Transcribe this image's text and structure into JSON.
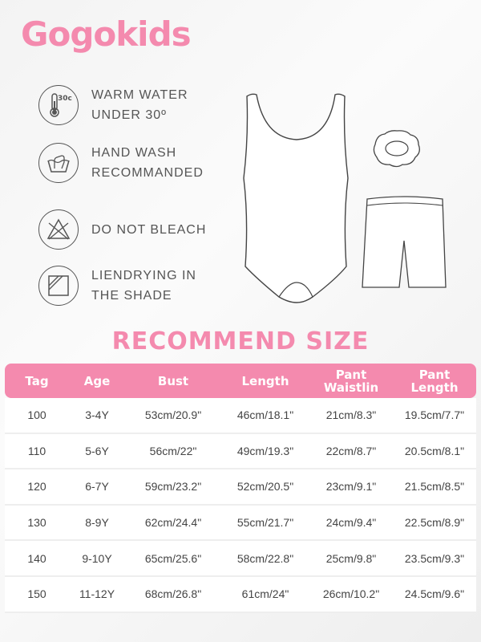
{
  "brand": "Gogokids",
  "care": [
    {
      "icon": "thermometer-30-icon",
      "lines": [
        "WARM WATER",
        "UNDER 30º"
      ]
    },
    {
      "icon": "hand-wash-icon",
      "lines": [
        "HAND WASH",
        "RECOMMANDED"
      ]
    },
    {
      "icon": "no-bleach-icon",
      "lines": [
        "DO NOT BLEACH"
      ]
    },
    {
      "icon": "dry-in-shade-icon",
      "lines": [
        "LIENDRYING IN",
        "THE SHADE"
      ]
    }
  ],
  "thermo_label": "30c",
  "title": "RECOMMEND SIZE",
  "colors": {
    "accent": "#f48aae"
  },
  "table": {
    "headers": [
      [
        "Tag"
      ],
      [
        "Age"
      ],
      [
        "Bust"
      ],
      [
        "Length"
      ],
      [
        "Pant",
        "Waistlin"
      ],
      [
        "Pant",
        "Length"
      ]
    ],
    "rows": [
      [
        "100",
        "3-4Y",
        "53cm/20.9\"",
        "46cm/18.1\"",
        "21cm/8.3\"",
        "19.5cm/7.7\""
      ],
      [
        "110",
        "5-6Y",
        "56cm/22\"",
        "49cm/19.3\"",
        "22cm/8.7\"",
        "20.5cm/8.1\""
      ],
      [
        "120",
        "6-7Y",
        "59cm/23.2\"",
        "52cm/20.5\"",
        "23cm/9.1\"",
        "21.5cm/8.5\""
      ],
      [
        "130",
        "8-9Y",
        "62cm/24.4\"",
        "55cm/21.7\"",
        "24cm/9.4\"",
        "22.5cm/8.9\""
      ],
      [
        "140",
        "9-10Y",
        "65cm/25.6\"",
        "58cm/22.8\"",
        "25cm/9.8\"",
        "23.5cm/9.3\""
      ],
      [
        "150",
        "11-12Y",
        "68cm/26.8\"",
        "61cm/24\"",
        "26cm/10.2\"",
        "24.5cm/9.6\""
      ]
    ]
  }
}
